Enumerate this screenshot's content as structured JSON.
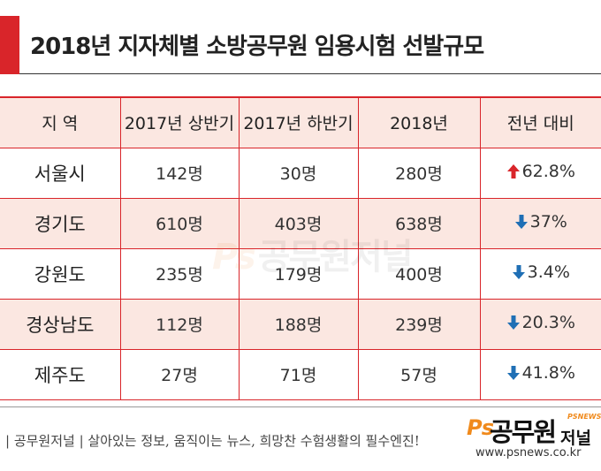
{
  "title": "2018년 지자체별 소방공무원 임용시험 선발규모",
  "table": {
    "headers": [
      "지 역",
      "2017년 상반기",
      "2017년 하반기",
      "2018년",
      "전년 대비"
    ],
    "rows": [
      {
        "region": "서울시",
        "h1_2017": "142명",
        "h2_2017": "30명",
        "y2018": "280명",
        "direction": "up",
        "change": "62.8%"
      },
      {
        "region": "경기도",
        "h1_2017": "610명",
        "h2_2017": "403명",
        "y2018": "638명",
        "direction": "down",
        "change": "37%"
      },
      {
        "region": "강원도",
        "h1_2017": "235명",
        "h2_2017": "179명",
        "y2018": "400명",
        "direction": "down",
        "change": "3.4%"
      },
      {
        "region": "경상남도",
        "h1_2017": "112명",
        "h2_2017": "188명",
        "y2018": "239명",
        "direction": "down",
        "change": "20.3%"
      },
      {
        "region": "제주도",
        "h1_2017": "27명",
        "h2_2017": "71명",
        "y2018": "57명",
        "direction": "down",
        "change": "41.8%"
      }
    ]
  },
  "colors": {
    "accent": "#d9252a",
    "row_tint": "#fbe7e1",
    "up_arrow": "#d9252a",
    "down_arrow": "#1f6fb5",
    "logo_orange": "#f08a1c"
  },
  "icons": {
    "up": "red-up-arrow-icon",
    "down": "blue-down-arrow-icon"
  },
  "watermark": {
    "ps": "Ps",
    "text": "공무원저널"
  },
  "footer": {
    "text": "| 공무원저널 | 살아있는 정보, 움직이는 뉴스, 희망찬 수험생활의 필수엔진!",
    "logo_ps": "Ps",
    "logo_main": "공무원",
    "logo_sub": "저널",
    "logo_tag": "PSNEWS",
    "url": "www.psnews.co.kr"
  }
}
